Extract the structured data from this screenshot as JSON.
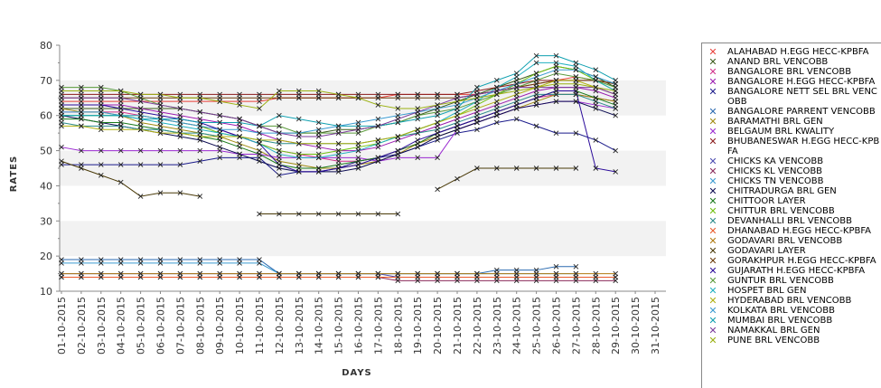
{
  "chart_data": {
    "type": "line",
    "xlabel": "DAYS",
    "ylabel": "RATES",
    "ylim": [
      10,
      80
    ],
    "yticks": [
      10,
      20,
      30,
      40,
      50,
      60,
      70,
      80
    ],
    "grid": "alternating horizontal bands",
    "legend_position": "right",
    "categories": [
      "01-10-2015",
      "02-10-2015",
      "03-10-2015",
      "04-10-2015",
      "05-10-2015",
      "06-10-2015",
      "07-10-2015",
      "08-10-2015",
      "09-10-2015",
      "10-10-2015",
      "11-10-2015",
      "12-10-2015",
      "13-10-2015",
      "14-10-2015",
      "15-10-2015",
      "16-10-2015",
      "17-10-2015",
      "18-10-2015",
      "19-10-2015",
      "20-10-2015",
      "21-10-2015",
      "22-10-2015",
      "23-10-2015",
      "24-10-2015",
      "25-10-2015",
      "26-10-2015",
      "27-10-2015",
      "28-10-2015",
      "29-10-2015",
      "30-10-2015",
      "31-10-2015"
    ],
    "series": [
      {
        "name": "ALAHABAD H.EGG HECC-KPBFA",
        "color": "#e8403a",
        "values": [
          64,
          64,
          64,
          64,
          64,
          64,
          64,
          64,
          64,
          64,
          64,
          65,
          65,
          65,
          65,
          65,
          65,
          66,
          66,
          66,
          66,
          66,
          67,
          68,
          69,
          70,
          71,
          70,
          69,
          null,
          null
        ]
      },
      {
        "name": "ANAND BRL VENCOBB",
        "color": "#3a5a1a",
        "values": [
          62,
          62,
          62,
          62,
          62,
          62,
          62,
          61,
          60,
          59,
          57,
          55,
          55,
          55,
          56,
          56,
          57,
          58,
          60,
          62,
          64,
          66,
          68,
          70,
          72,
          74,
          73,
          71,
          68,
          null,
          null
        ]
      },
      {
        "name": "BANGALORE BRL VENCOBB",
        "color": "#d0308a",
        "values": [
          61,
          61,
          61,
          61,
          60,
          59,
          58,
          57,
          56,
          54,
          52,
          50,
          49,
          48,
          47,
          47,
          48,
          50,
          52,
          55,
          57,
          59,
          61,
          63,
          65,
          66,
          66,
          65,
          64,
          null,
          null
        ]
      },
      {
        "name": "BANGALORE H.EGG HECC-KPBFA",
        "color": "#9a1ab0",
        "values": [
          63,
          63,
          63,
          63,
          62,
          61,
          60,
          59,
          58,
          57,
          55,
          53,
          52,
          51,
          50,
          50,
          51,
          53,
          55,
          57,
          59,
          61,
          63,
          65,
          67,
          68,
          68,
          67,
          65,
          null,
          null
        ]
      },
      {
        "name": "BANGALORE NETT SEL BRL VENCOBB",
        "color": "#1a1a8a",
        "values": [
          46,
          46,
          46,
          46,
          46,
          46,
          46,
          47,
          48,
          48,
          48,
          43,
          44,
          44,
          45,
          47,
          48,
          49,
          51,
          53,
          55,
          56,
          58,
          59,
          57,
          55,
          55,
          53,
          50,
          null,
          null
        ]
      },
      {
        "name": "BANGALORE PARRENT VENCOBB",
        "color": "#2a6ab0",
        "values": [
          19,
          19,
          19,
          19,
          19,
          19,
          19,
          19,
          19,
          19,
          19,
          15,
          15,
          15,
          15,
          15,
          15,
          15,
          15,
          15,
          15,
          15,
          16,
          16,
          16,
          17,
          17,
          null,
          null,
          null,
          null
        ]
      },
      {
        "name": "BARAMATHI BRL GEN",
        "color": "#a08a10",
        "values": [
          62,
          61,
          61,
          60,
          58,
          57,
          56,
          55,
          54,
          52,
          50,
          47,
          46,
          45,
          45,
          46,
          47,
          49,
          52,
          54,
          56,
          58,
          60,
          62,
          64,
          66,
          66,
          65,
          64,
          null,
          null
        ]
      },
      {
        "name": "BELGAUM BRL KWALITY",
        "color": "#9a2ad0",
        "values": [
          51,
          50,
          50,
          50,
          50,
          50,
          50,
          50,
          50,
          49,
          49,
          48,
          48,
          48,
          48,
          48,
          47,
          48,
          48,
          48,
          56,
          58,
          60,
          62,
          63,
          64,
          64,
          63,
          62,
          null,
          null
        ]
      },
      {
        "name": "BHUBANESWAR H.EGG HECC-KPBFA",
        "color": "#8a1a1a",
        "values": [
          66,
          66,
          66,
          66,
          66,
          66,
          66,
          66,
          66,
          66,
          66,
          66,
          66,
          66,
          66,
          66,
          66,
          66,
          66,
          66,
          66,
          67,
          68,
          69,
          70,
          70,
          70,
          70,
          69,
          null,
          null
        ]
      },
      {
        "name": "CHICKS KA VENCOBB",
        "color": "#4a4ab0",
        "values": [
          15,
          15,
          15,
          15,
          15,
          15,
          15,
          15,
          15,
          15,
          15,
          15,
          15,
          15,
          15,
          15,
          15,
          14,
          14,
          14,
          14,
          14,
          14,
          14,
          14,
          14,
          14,
          14,
          14,
          null,
          null
        ]
      },
      {
        "name": "CHICKS KL VENCOBB",
        "color": "#8a2a5a",
        "values": [
          14,
          14,
          14,
          14,
          14,
          14,
          14,
          14,
          14,
          14,
          14,
          14,
          14,
          14,
          14,
          14,
          14,
          13,
          13,
          13,
          13,
          13,
          13,
          13,
          13,
          13,
          13,
          13,
          13,
          null,
          null
        ]
      },
      {
        "name": "CHICKS TN VENCOBB",
        "color": "#3a9ad0",
        "values": [
          18,
          18,
          18,
          18,
          18,
          18,
          18,
          18,
          18,
          18,
          18,
          15,
          15,
          15,
          15,
          15,
          15,
          15,
          15,
          15,
          15,
          15,
          15,
          15,
          15,
          15,
          15,
          null,
          null,
          null,
          null
        ]
      },
      {
        "name": "CHITRADURGA BRL GEN",
        "color": "#0a0a50",
        "values": [
          60,
          59,
          58,
          57,
          56,
          55,
          54,
          53,
          51,
          49,
          47,
          45,
          44,
          44,
          44,
          45,
          47,
          49,
          51,
          54,
          56,
          58,
          60,
          62,
          63,
          64,
          64,
          62,
          60,
          null,
          null
        ]
      },
      {
        "name": "CHITTOOR LAYER",
        "color": "#1a7a1a",
        "values": [
          59,
          59,
          58,
          58,
          57,
          56,
          55,
          54,
          53,
          51,
          49,
          46,
          45,
          45,
          46,
          47,
          48,
          50,
          52,
          55,
          57,
          59,
          61,
          63,
          65,
          67,
          67,
          65,
          63,
          null,
          null
        ]
      },
      {
        "name": "CHITTUR BRL VENCOBB",
        "color": "#70c010",
        "values": [
          60,
          60,
          60,
          60,
          60,
          59,
          58,
          57,
          55,
          54,
          52,
          50,
          49,
          49,
          50,
          51,
          52,
          54,
          56,
          58,
          60,
          63,
          66,
          69,
          72,
          74,
          73,
          70,
          67,
          null,
          null
        ]
      },
      {
        "name": "DEVANHALLI BRL VENCOBB",
        "color": "#2a8a8a",
        "values": [
          58,
          57,
          57,
          57,
          56,
          56,
          55,
          55,
          54,
          54,
          53,
          52,
          52,
          52,
          52,
          52,
          53,
          54,
          55,
          56,
          58,
          60,
          62,
          64,
          66,
          66,
          66,
          64,
          62,
          null,
          null
        ]
      },
      {
        "name": "DHANABAD H.EGG HECC-KPBFA",
        "color": "#e85a2a",
        "values": [
          14,
          14,
          14,
          14,
          14,
          14,
          14,
          14,
          14,
          14,
          14,
          14,
          14,
          14,
          14,
          14,
          14,
          14,
          14,
          14,
          14,
          14,
          14,
          14,
          14,
          14,
          14,
          14,
          14,
          null,
          null
        ]
      },
      {
        "name": "GODAVARI BRL VENCOBB",
        "color": "#b07a10",
        "values": [
          15,
          15,
          15,
          15,
          15,
          15,
          15,
          15,
          15,
          15,
          15,
          15,
          15,
          15,
          15,
          15,
          15,
          15,
          15,
          15,
          15,
          15,
          15,
          15,
          15,
          15,
          15,
          15,
          15,
          null,
          null
        ]
      },
      {
        "name": "GODAVARI LAYER",
        "color": "#4a3a08",
        "values": [
          47,
          45,
          43,
          41,
          37,
          38,
          38,
          37,
          null,
          null,
          32,
          32,
          32,
          32,
          32,
          32,
          32,
          32,
          null,
          39,
          42,
          45,
          45,
          45,
          45,
          45,
          45,
          null,
          null,
          null,
          null
        ]
      },
      {
        "name": "GORAKHPUR H.EGG HECC-KPBFA",
        "color": "#6a3a0a",
        "values": [
          65,
          65,
          65,
          65,
          65,
          65,
          65,
          65,
          65,
          65,
          65,
          65,
          65,
          65,
          65,
          65,
          65,
          65,
          65,
          65,
          65,
          66,
          67,
          68,
          69,
          70,
          70,
          70,
          69,
          null,
          null
        ]
      },
      {
        "name": "GUJARATH H.EGG HECC-KPBFA",
        "color": "#2a0a9a",
        "values": [
          63,
          63,
          63,
          62,
          61,
          60,
          59,
          58,
          56,
          54,
          52,
          46,
          44,
          44,
          45,
          46,
          48,
          50,
          53,
          55,
          57,
          59,
          61,
          63,
          65,
          67,
          67,
          45,
          44,
          null,
          null
        ]
      },
      {
        "name": "GUNTUR BRL VENCOBB",
        "color": "#5a9a3a",
        "values": [
          68,
          68,
          68,
          67,
          65,
          63,
          62,
          61,
          60,
          59,
          57,
          57,
          55,
          55,
          55,
          55,
          57,
          58,
          60,
          61,
          62,
          64,
          66,
          68,
          70,
          72,
          71,
          70,
          68,
          null,
          null
        ]
      },
      {
        "name": "HOSPET BRL GEN",
        "color": "#20b0c0",
        "values": [
          60,
          60,
          60,
          60,
          59,
          58,
          57,
          56,
          55,
          54,
          52,
          49,
          48,
          48,
          49,
          50,
          52,
          54,
          56,
          58,
          61,
          64,
          68,
          71,
          75,
          75,
          74,
          70,
          67,
          null,
          null
        ]
      },
      {
        "name": "HYDERABAD BRL VENCOBB",
        "color": "#b0b010",
        "values": [
          57,
          57,
          56,
          56,
          56,
          55,
          55,
          54,
          54,
          54,
          53,
          53,
          52,
          52,
          52,
          52,
          53,
          54,
          56,
          58,
          60,
          62,
          64,
          66,
          68,
          70,
          70,
          68,
          66,
          null,
          null
        ]
      },
      {
        "name": "KOLKATA BRL VENCOBB",
        "color": "#3a9ad0",
        "values": [
          61,
          61,
          61,
          60,
          60,
          59,
          58,
          57,
          56,
          56,
          55,
          55,
          55,
          56,
          57,
          58,
          59,
          60,
          61,
          62,
          63,
          65,
          67,
          69,
          71,
          73,
          73,
          71,
          69,
          null,
          null
        ]
      },
      {
        "name": "MUMBAI BRL VENCOBB",
        "color": "#10a0b0",
        "values": [
          60,
          60,
          60,
          60,
          59,
          59,
          59,
          58,
          58,
          58,
          57,
          60,
          59,
          58,
          57,
          57,
          57,
          58,
          59,
          60,
          62,
          68,
          70,
          72,
          77,
          77,
          75,
          73,
          70,
          null,
          null
        ]
      },
      {
        "name": "NAMAKKAL BRL GEN",
        "color": "#7a3a9a",
        "values": [
          65,
          65,
          65,
          65,
          64,
          63,
          62,
          61,
          60,
          59,
          57,
          55,
          54,
          54,
          55,
          56,
          57,
          59,
          61,
          63,
          65,
          66,
          67,
          68,
          68,
          68,
          68,
          68,
          66,
          null,
          null
        ]
      },
      {
        "name": "PUNE BRL VENCOBB",
        "color": "#9ab010",
        "values": [
          67,
          67,
          67,
          67,
          66,
          66,
          65,
          65,
          64,
          63,
          62,
          67,
          67,
          67,
          66,
          65,
          63,
          62,
          62,
          63,
          64,
          65,
          66,
          67,
          68,
          69,
          69,
          68,
          67,
          null,
          null
        ]
      }
    ]
  }
}
